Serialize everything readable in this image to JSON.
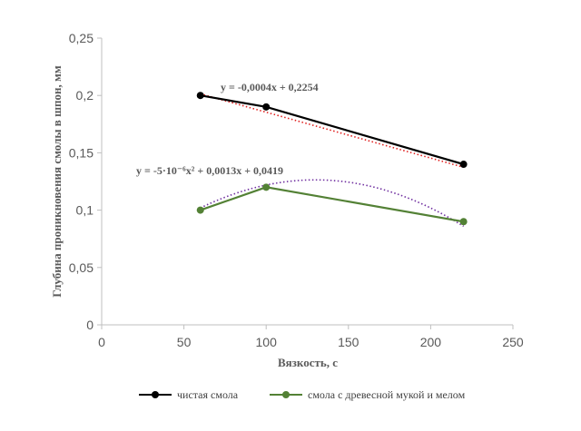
{
  "chart_data": {
    "type": "line",
    "title": "",
    "xlabel": "Вязкость, с",
    "ylabel": "Глубина проникновения смолы в шпон, мм",
    "xlim": [
      0,
      250
    ],
    "ylim": [
      0,
      0.25
    ],
    "x_ticks": [
      {
        "value": 0,
        "label": "0"
      },
      {
        "value": 50,
        "label": "50"
      },
      {
        "value": 100,
        "label": "100"
      },
      {
        "value": 150,
        "label": "150"
      },
      {
        "value": 200,
        "label": "200"
      },
      {
        "value": 250,
        "label": "250"
      }
    ],
    "y_ticks": [
      {
        "value": 0,
        "label": "0"
      },
      {
        "value": 0.05,
        "label": "0,05"
      },
      {
        "value": 0.1,
        "label": "0,1"
      },
      {
        "value": 0.15,
        "label": "0,15"
      },
      {
        "value": 0.2,
        "label": "0,2"
      },
      {
        "value": 0.25,
        "label": "0,25"
      }
    ],
    "grid": false,
    "legend_position": "bottom",
    "series": [
      {
        "name": "чистая смола",
        "color": "#000000",
        "x": [
          60,
          100,
          220
        ],
        "y": [
          0.2,
          0.19,
          0.14
        ],
        "trendline": {
          "kind": "linear",
          "color": "#e0201f",
          "coefficients": {
            "a": -0.0004,
            "b": 0.2254
          },
          "equation_label": "y = -0,0004x + 0,2254"
        }
      },
      {
        "name": "смола с древесной мукой и мелом",
        "color": "#538135",
        "x": [
          60,
          100,
          220
        ],
        "y": [
          0.1,
          0.12,
          0.09
        ],
        "trendline": {
          "kind": "polynomial",
          "color": "#7030a0",
          "coefficients": {
            "a": -5e-06,
            "b": 0.0013,
            "c": 0.0419
          },
          "equation_label": "y = -5·10⁻⁶x² + 0,0013x + 0,0419"
        }
      }
    ]
  }
}
